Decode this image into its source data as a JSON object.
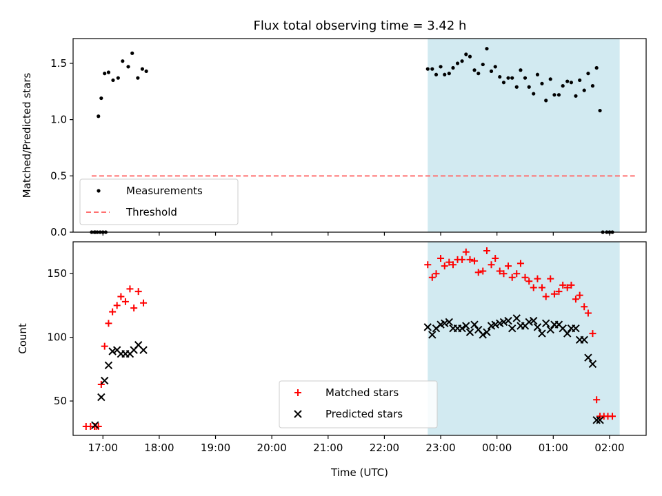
{
  "title": "Flux total observing time = 3.42 h",
  "colors": {
    "measurement": "#000000",
    "threshold": "#ff7070",
    "matched": "#ff0000",
    "predicted": "#000000",
    "night_band": "#add8e6"
  },
  "chart_data": [
    {
      "type": "scatter",
      "ylabel": "Matched/Predicted stars",
      "xlabel": "",
      "xlim": [
        -0.53,
        9.65
      ],
      "ylim": [
        0,
        1.72
      ],
      "yticks": [
        0.0,
        0.5,
        1.0,
        1.5
      ],
      "ytick_labels": [
        "0.0",
        "0.5",
        "1.0",
        "1.5"
      ],
      "legend": {
        "placement": "lower-left",
        "entries": [
          "Measurements",
          "Threshold"
        ]
      },
      "shaded_region": [
        5.77,
        9.18
      ],
      "threshold": {
        "name": "Threshold",
        "y": 0.5,
        "x_range": [
          -0.2,
          9.45
        ]
      },
      "series": [
        {
          "name": "Measurements",
          "marker": "dot",
          "points": [
            [
              -0.2,
              0
            ],
            [
              -0.15,
              0
            ],
            [
              -0.1,
              0
            ],
            [
              -0.05,
              0
            ],
            [
              0.0,
              0
            ],
            [
              0.05,
              0
            ],
            [
              -0.14,
              0.0
            ],
            [
              -0.08,
              1.03
            ],
            [
              -0.03,
              1.19
            ],
            [
              0.03,
              1.41
            ],
            [
              0.1,
              1.42
            ],
            [
              0.18,
              1.35
            ],
            [
              0.27,
              1.37
            ],
            [
              0.35,
              1.52
            ],
            [
              0.45,
              1.47
            ],
            [
              0.52,
              1.59
            ],
            [
              0.62,
              1.37
            ],
            [
              0.7,
              1.45
            ],
            [
              0.77,
              1.43
            ],
            [
              5.77,
              1.45
            ],
            [
              5.85,
              1.45
            ],
            [
              5.92,
              1.4
            ],
            [
              6.0,
              1.47
            ],
            [
              6.07,
              1.4
            ],
            [
              6.15,
              1.41
            ],
            [
              6.22,
              1.46
            ],
            [
              6.3,
              1.5
            ],
            [
              6.38,
              1.52
            ],
            [
              6.45,
              1.58
            ],
            [
              6.52,
              1.56
            ],
            [
              6.6,
              1.44
            ],
            [
              6.67,
              1.41
            ],
            [
              6.75,
              1.49
            ],
            [
              6.82,
              1.63
            ],
            [
              6.9,
              1.43
            ],
            [
              6.97,
              1.47
            ],
            [
              7.05,
              1.38
            ],
            [
              7.12,
              1.33
            ],
            [
              7.2,
              1.37
            ],
            [
              7.27,
              1.37
            ],
            [
              7.35,
              1.29
            ],
            [
              7.42,
              1.44
            ],
            [
              7.5,
              1.37
            ],
            [
              7.57,
              1.29
            ],
            [
              7.65,
              1.23
            ],
            [
              7.72,
              1.4
            ],
            [
              7.8,
              1.32
            ],
            [
              7.87,
              1.17
            ],
            [
              7.95,
              1.36
            ],
            [
              8.02,
              1.22
            ],
            [
              8.1,
              1.22
            ],
            [
              8.17,
              1.3
            ],
            [
              8.25,
              1.34
            ],
            [
              8.32,
              1.33
            ],
            [
              8.4,
              1.21
            ],
            [
              8.47,
              1.35
            ],
            [
              8.55,
              1.26
            ],
            [
              8.62,
              1.41
            ],
            [
              8.7,
              1.3
            ],
            [
              8.77,
              1.46
            ],
            [
              8.83,
              1.08
            ],
            [
              8.88,
              0
            ],
            [
              8.95,
              0
            ],
            [
              9.0,
              0
            ],
            [
              9.05,
              0
            ]
          ]
        }
      ]
    },
    {
      "type": "scatter",
      "ylabel": "Count",
      "xlabel": "Time (UTC)",
      "xlim": [
        -0.53,
        9.65
      ],
      "ylim": [
        23,
        175
      ],
      "yticks": [
        50,
        100,
        150
      ],
      "ytick_labels": [
        "50",
        "100",
        "150"
      ],
      "xticks": [
        0,
        1,
        2,
        3,
        4,
        5,
        6,
        7,
        8,
        9
      ],
      "xtick_labels": [
        "17:00",
        "18:00",
        "19:00",
        "20:00",
        "21:00",
        "22:00",
        "23:00",
        "00:00",
        "01:00",
        "02:00"
      ],
      "legend": {
        "placement": "lower-center",
        "entries": [
          "Matched stars",
          "Predicted stars"
        ]
      },
      "shaded_region": [
        5.77,
        9.18
      ],
      "series": [
        {
          "name": "Matched stars",
          "marker": "plus",
          "points": [
            [
              -0.3,
              30
            ],
            [
              -0.22,
              30
            ],
            [
              -0.15,
              30
            ],
            [
              -0.08,
              30
            ],
            [
              -0.12,
              30
            ],
            [
              -0.03,
              63
            ],
            [
              0.03,
              93
            ],
            [
              0.1,
              111
            ],
            [
              0.17,
              120
            ],
            [
              0.25,
              125
            ],
            [
              0.32,
              132
            ],
            [
              0.4,
              128
            ],
            [
              0.48,
              138
            ],
            [
              0.55,
              123
            ],
            [
              0.63,
              136
            ],
            [
              0.72,
              127
            ],
            [
              5.77,
              157
            ],
            [
              5.85,
              147
            ],
            [
              5.92,
              150
            ],
            [
              6.0,
              162
            ],
            [
              6.07,
              156
            ],
            [
              6.15,
              159
            ],
            [
              6.22,
              157
            ],
            [
              6.3,
              161
            ],
            [
              6.38,
              161
            ],
            [
              6.45,
              167
            ],
            [
              6.52,
              161
            ],
            [
              6.6,
              160
            ],
            [
              6.67,
              151
            ],
            [
              6.75,
              152
            ],
            [
              6.82,
              168
            ],
            [
              6.9,
              157
            ],
            [
              6.97,
              162
            ],
            [
              7.05,
              152
            ],
            [
              7.12,
              150
            ],
            [
              7.2,
              156
            ],
            [
              7.27,
              147
            ],
            [
              7.35,
              150
            ],
            [
              7.42,
              158
            ],
            [
              7.5,
              147
            ],
            [
              7.57,
              144
            ],
            [
              7.65,
              139
            ],
            [
              7.72,
              146
            ],
            [
              7.8,
              139
            ],
            [
              7.87,
              132
            ],
            [
              7.95,
              146
            ],
            [
              8.02,
              134
            ],
            [
              8.1,
              136
            ],
            [
              8.17,
              141
            ],
            [
              8.25,
              139
            ],
            [
              8.32,
              141
            ],
            [
              8.4,
              130
            ],
            [
              8.47,
              133
            ],
            [
              8.55,
              124
            ],
            [
              8.62,
              119
            ],
            [
              8.7,
              103
            ],
            [
              8.77,
              51
            ],
            [
              8.83,
              38
            ],
            [
              8.9,
              38
            ],
            [
              8.97,
              38
            ],
            [
              9.05,
              38
            ]
          ]
        },
        {
          "name": "Predicted stars",
          "marker": "x",
          "points": [
            [
              -0.14,
              31
            ],
            [
              -0.03,
              53
            ],
            [
              0.03,
              66
            ],
            [
              0.1,
              78
            ],
            [
              0.17,
              89
            ],
            [
              0.25,
              90
            ],
            [
              0.32,
              87
            ],
            [
              0.4,
              87
            ],
            [
              0.48,
              87
            ],
            [
              0.55,
              90
            ],
            [
              0.63,
              94
            ],
            [
              0.72,
              90
            ],
            [
              5.77,
              108
            ],
            [
              5.85,
              102
            ],
            [
              5.92,
              107
            ],
            [
              6.0,
              110
            ],
            [
              6.07,
              111
            ],
            [
              6.15,
              112
            ],
            [
              6.22,
              107
            ],
            [
              6.3,
              107
            ],
            [
              6.38,
              107
            ],
            [
              6.45,
              109
            ],
            [
              6.52,
              104
            ],
            [
              6.6,
              110
            ],
            [
              6.67,
              106
            ],
            [
              6.75,
              102
            ],
            [
              6.82,
              104
            ],
            [
              6.9,
              109
            ],
            [
              6.97,
              110
            ],
            [
              7.05,
              111
            ],
            [
              7.12,
              112
            ],
            [
              7.2,
              113
            ],
            [
              7.27,
              107
            ],
            [
              7.35,
              115
            ],
            [
              7.42,
              109
            ],
            [
              7.5,
              109
            ],
            [
              7.57,
              112
            ],
            [
              7.65,
              113
            ],
            [
              7.72,
              108
            ],
            [
              7.8,
              103
            ],
            [
              7.87,
              111
            ],
            [
              7.95,
              106
            ],
            [
              8.02,
              110
            ],
            [
              8.1,
              110
            ],
            [
              8.17,
              107
            ],
            [
              8.25,
              103
            ],
            [
              8.32,
              107
            ],
            [
              8.4,
              107
            ],
            [
              8.47,
              98
            ],
            [
              8.55,
              98
            ],
            [
              8.62,
              84
            ],
            [
              8.7,
              79
            ],
            [
              8.77,
              35
            ],
            [
              8.83,
              35
            ]
          ]
        }
      ]
    }
  ]
}
